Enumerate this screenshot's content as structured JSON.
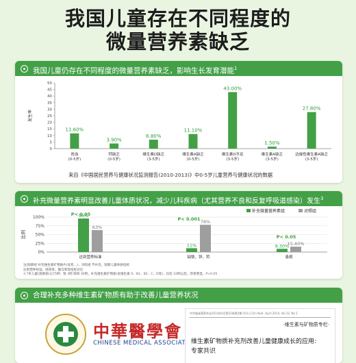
{
  "title": {
    "line1": "我国儿童存在不同程度的",
    "line2": "微量营养素缺乏"
  },
  "card1": {
    "header": "我国儿童仍存在不同程度的微量营养素缺乏，影响生长发育潜能",
    "header_sup": "1",
    "source": "来自《中国居民营养与健康状况监测报告(2010-2013)》中0-5岁儿童营养与健康状况的数据"
  },
  "card2": {
    "header": "补充微量营养素明显改善儿童体质状况，减少儿科疾病（尤其营养不良和反复呼吸道感染）发生",
    "header_sup": "3",
    "notes": [
      "注|观察组 补充维生素矿物质片(含有…)，对照组 不补充，观察儿童体质指标",
      "达到营养标准，感冒率，腹泻率等指标对比",
      "3.7岁儿童(观察组)以75例：铁 3例 缺锌 30例，补充维生素矿物质(含维生素 A、B1、B2、C、D等)，比较 10例以后，改善明显，P<0.05"
    ]
  },
  "card3": {
    "header": "合理补充多种维生素矿物质有助于改善儿童营养状况",
    "logo_cn": "中華醫學會",
    "logo_en": "CHINESE MEDICAL ASSOCIATION",
    "doc_header": "中华临床营养杂志2014年4月第22卷第2期  Chin J Clin Nutr, April 2014, Vol 22, No 2",
    "doc_section": "·维生素与矿物质专栏·",
    "doc_title1": "维生素矿物质补充剂改善儿童健康成长的应用:",
    "doc_title2": "专家共识"
  },
  "colors": {
    "bar": "#43a047",
    "bar_grey": "#9e9e9e",
    "label": "#2e9c3a",
    "axis": "#888888",
    "pval": "#3a9d3a"
  },
  "chart_data": [
    {
      "type": "bar",
      "ylabel": "发生率",
      "ylim": [
        0,
        50
      ],
      "yticks": [
        0,
        5,
        10,
        15,
        20,
        25,
        30,
        35,
        40,
        45,
        50
      ],
      "grid": false,
      "categories": [
        [
          "贫血",
          "(0-5岁)"
        ],
        [
          "钙缺乏",
          "(0-5岁)"
        ],
        [
          "维生素D缺乏",
          "(3-5岁)"
        ],
        [
          "维生素A缺乏",
          "(0-5岁)"
        ],
        [
          "维生素D不足",
          "(3-5岁)"
        ],
        [
          "维生素A缺乏",
          "(3-5岁)"
        ],
        [
          "边缘性维生素A缺乏",
          "(3-5岁)"
        ]
      ],
      "values": [
        11.6,
        3.9,
        6.8,
        11.1,
        43.0,
        1.5,
        27.8
      ],
      "value_labels": [
        "11.60%",
        "3.90%",
        "6.80%",
        "11.10%",
        "43.00%",
        "1.50%",
        "27.80%"
      ]
    },
    {
      "type": "bar",
      "ylabel": "比例",
      "ylim": [
        0,
        100
      ],
      "yticks": [
        "0%",
        "25%",
        "50%",
        "75%",
        "100%"
      ],
      "grid": true,
      "legend_position": "top-right",
      "categories": [
        "达到营养标准",
        "缺铁、锌、钙",
        "患病"
      ],
      "series": [
        {
          "name": "补充微量营养素组",
          "values": [
            96,
            11,
            9.3
          ],
          "value_labels": [
            "96%",
            "11%",
            "9.30%"
          ]
        },
        {
          "name": "对照组",
          "values": [
            63,
            78,
            15.4
          ],
          "value_labels": [
            "63%",
            "78%",
            "15.40%"
          ]
        }
      ],
      "annotations": [
        "P< 0.05",
        "P< 0.001",
        "P< 0.05"
      ]
    }
  ]
}
